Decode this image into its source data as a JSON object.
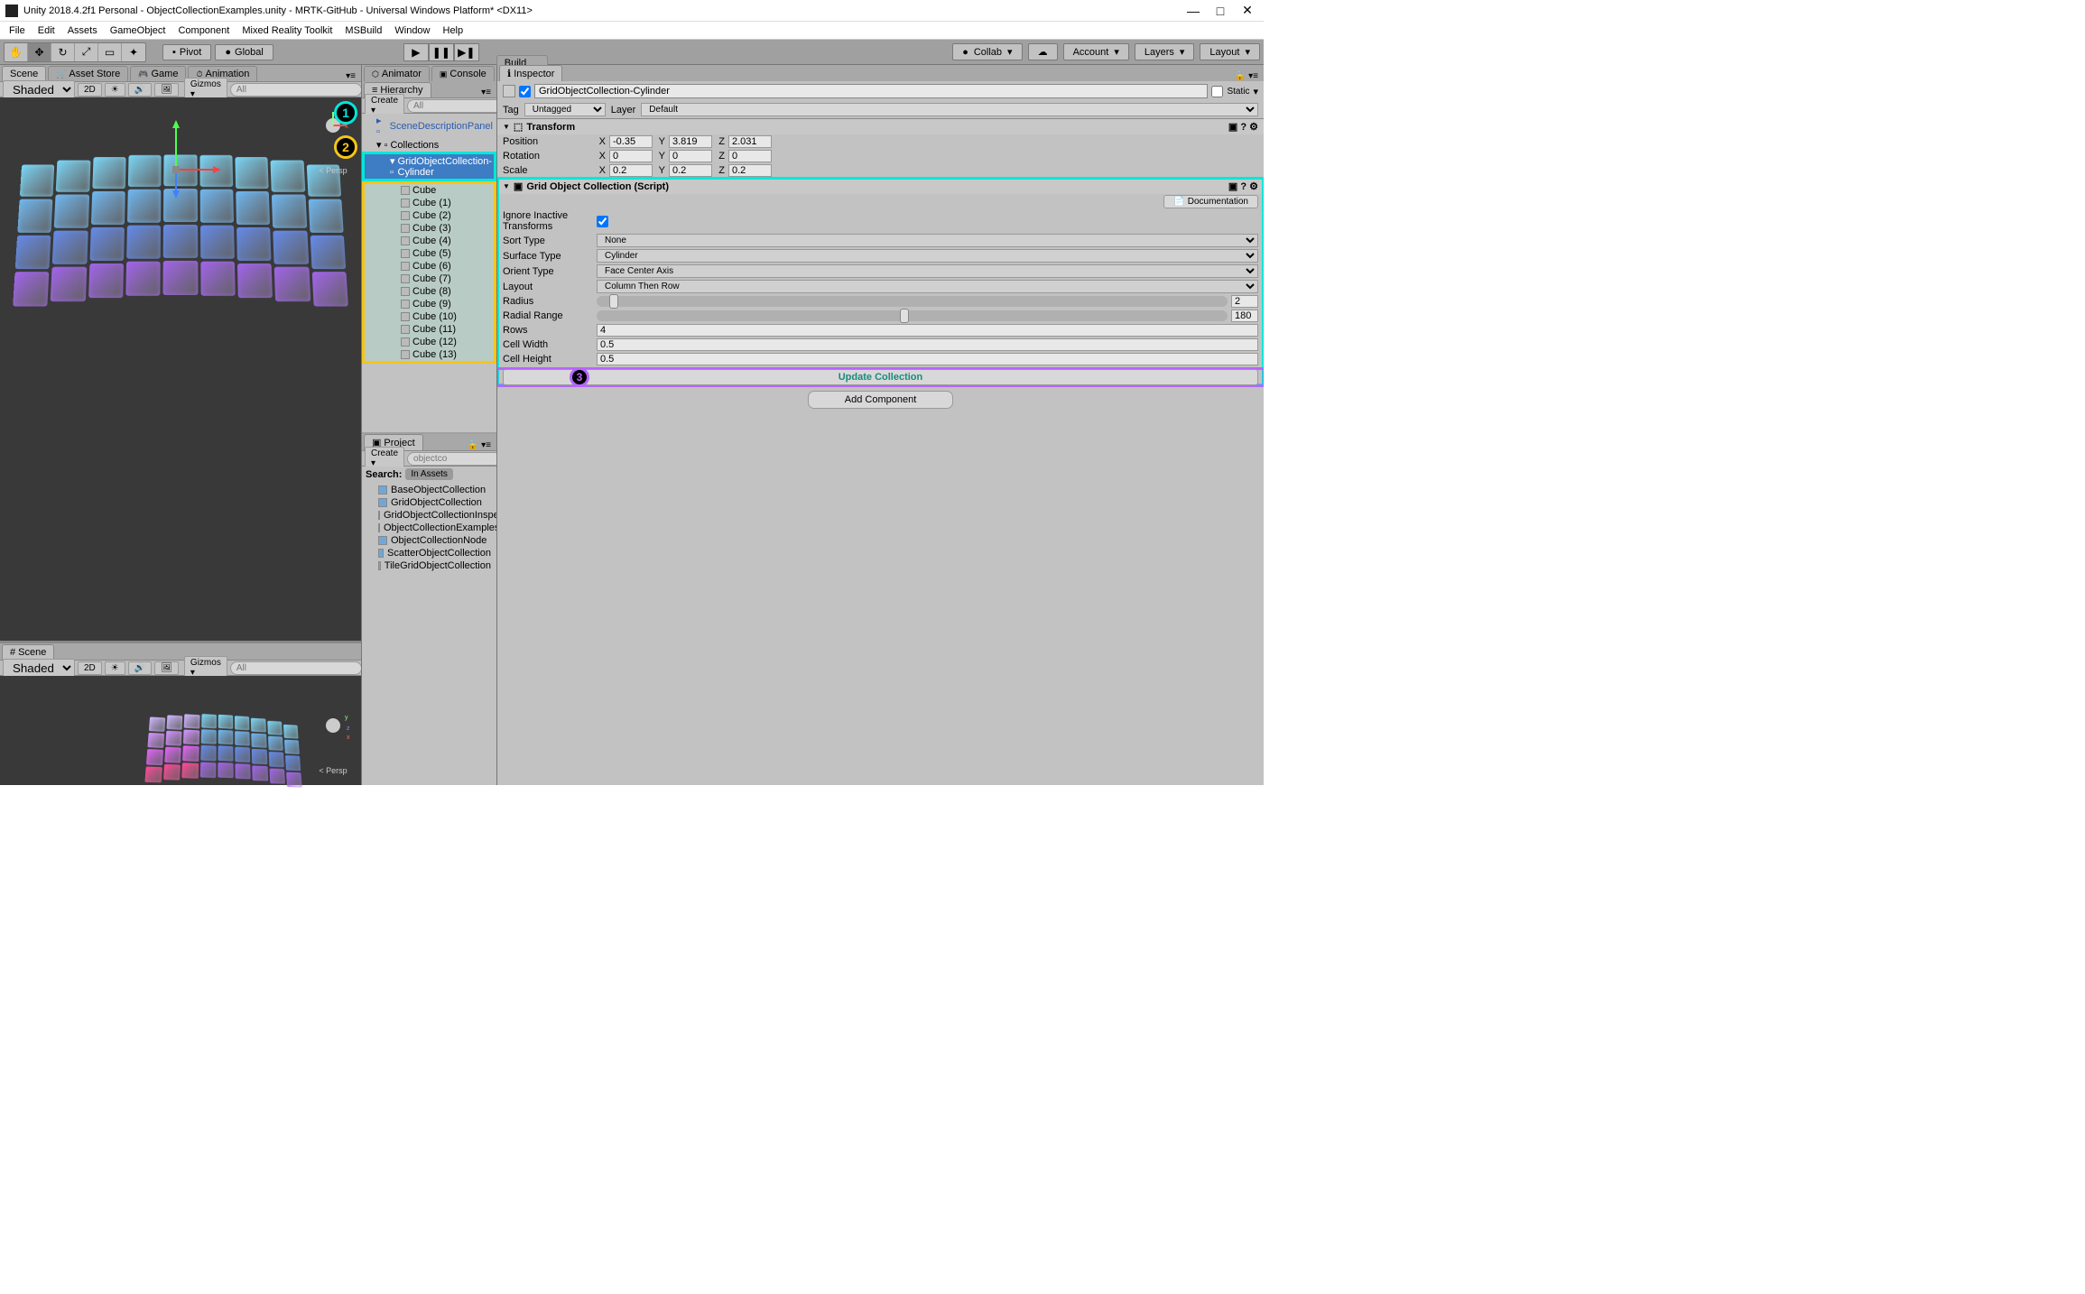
{
  "window": {
    "title": "Unity 2018.4.2f1 Personal - ObjectCollectionExamples.unity - MRTK-GitHub - Universal Windows Platform* <DX11>",
    "minimize": "—",
    "maximize": "□",
    "close": "✕"
  },
  "menus": [
    "File",
    "Edit",
    "Assets",
    "GameObject",
    "Component",
    "Mixed Reality Toolkit",
    "MSBuild",
    "Window",
    "Help"
  ],
  "toolbar": {
    "pivot": "Pivot",
    "global": "Global",
    "collab": "Collab",
    "account": "Account",
    "layers": "Layers",
    "layout": "Layout"
  },
  "tabs": {
    "scene": "Scene",
    "asset_store": "Asset Store",
    "game": "Game",
    "animation": "Animation",
    "animator": "Animator",
    "console": "Console",
    "build_window": "Build Window",
    "hierarchy": "Hierarchy",
    "project": "Project",
    "inspector": "Inspector"
  },
  "scene_toolbar": {
    "shaded": "Shaded",
    "twod": "2D",
    "gizmos": "Gizmos",
    "search_ph": "All",
    "persp": "Persp"
  },
  "hierarchy": {
    "create": "Create",
    "search_ph": "All",
    "rows": [
      {
        "label": "SceneDescriptionPanel",
        "level": 1,
        "blue": true
      },
      {
        "label": "Collections",
        "level": 1
      }
    ],
    "selected": "GridObjectCollection-Cylinder",
    "cubes": [
      "Cube",
      "Cube (1)",
      "Cube (2)",
      "Cube (3)",
      "Cube (4)",
      "Cube (5)",
      "Cube (6)",
      "Cube (7)",
      "Cube (8)",
      "Cube (9)",
      "Cube (10)",
      "Cube (11)",
      "Cube (12)",
      "Cube (13)"
    ]
  },
  "project": {
    "create": "Create",
    "search_value": "objectco",
    "search_label": "Search:",
    "scope": "In Assets",
    "items": [
      "BaseObjectCollection",
      "GridObjectCollection",
      "GridObjectCollectionInspector",
      "ObjectCollectionExamples",
      "ObjectCollectionNode",
      "ScatterObjectCollection",
      "TileGridObjectCollection"
    ]
  },
  "inspector": {
    "name": "GridObjectCollection-Cylinder",
    "static_label": "Static",
    "tag_label": "Tag",
    "tag_value": "Untagged",
    "layer_label": "Layer",
    "layer_value": "Default",
    "transform": {
      "title": "Transform",
      "rows": [
        {
          "label": "Position",
          "x": "-0.35",
          "y": "3.819",
          "z": "2.031"
        },
        {
          "label": "Rotation",
          "x": "0",
          "y": "0",
          "z": "0"
        },
        {
          "label": "Scale",
          "x": "0.2",
          "y": "0.2",
          "z": "0.2"
        }
      ]
    },
    "grid_script": {
      "title": "Grid Object Collection (Script)",
      "doc_btn": "Documentation",
      "ignore_label": "Ignore Inactive Transforms",
      "sort_label": "Sort Type",
      "sort_value": "None",
      "surface_label": "Surface Type",
      "surface_value": "Cylinder",
      "orient_label": "Orient Type",
      "orient_value": "Face Center Axis",
      "layout_label": "Layout",
      "layout_value": "Column Then Row",
      "radius_label": "Radius",
      "radius_value": "2",
      "radial_label": "Radial Range",
      "radial_value": "180",
      "rows_label": "Rows",
      "rows_value": "4",
      "cellw_label": "Cell Width",
      "cellw_value": "0.5",
      "cellh_label": "Cell Height",
      "cellh_value": "0.5",
      "update_btn": "Update Collection",
      "add_btn": "Add Component"
    }
  },
  "callouts": {
    "c1": "1",
    "c2": "2",
    "c3": "3"
  },
  "colors": {
    "cyan": "#00e8d8",
    "yellow": "#f5c518",
    "purple": "#b566ff",
    "cube_gradient": [
      "#7ad4f5",
      "#6fb6ef",
      "#648ae8",
      "#a064e8"
    ]
  }
}
